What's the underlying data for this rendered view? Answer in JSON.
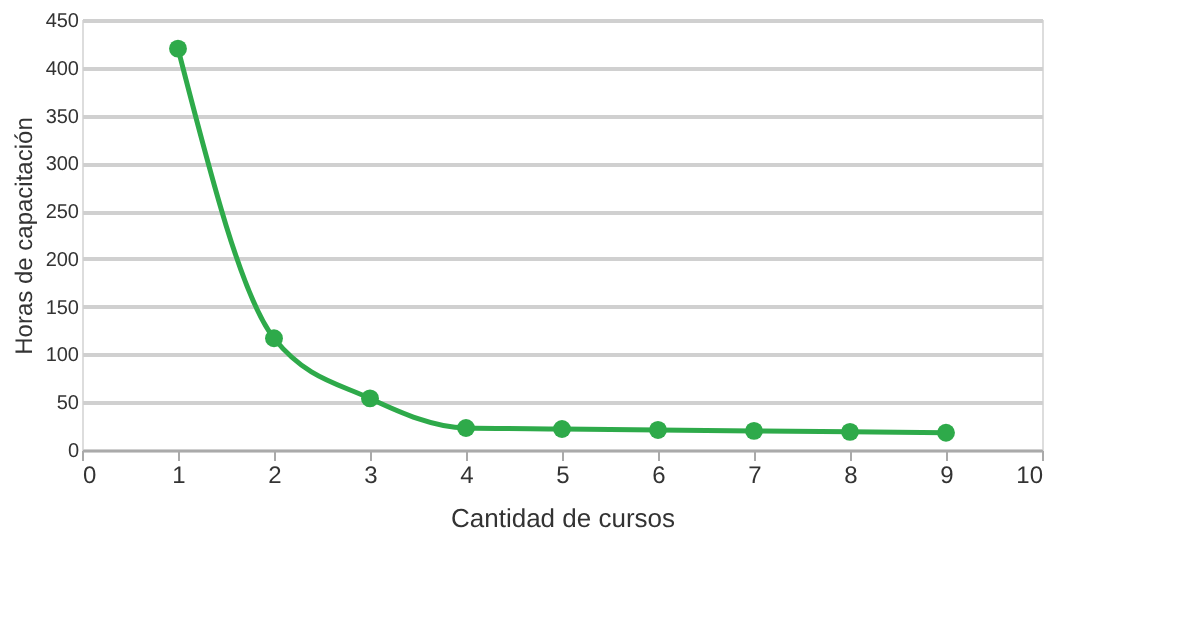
{
  "chart_data": {
    "type": "line",
    "xlabel": "Cantidad de cursos",
    "ylabel": "Horas de capacitación",
    "x": [
      1,
      2,
      3,
      4,
      5,
      6,
      7,
      8,
      9
    ],
    "series": [
      {
        "color": "#2eaa4a",
        "values": [
          420,
          117,
          54,
          23,
          22,
          21,
          20,
          19,
          18
        ]
      }
    ],
    "xlim": [
      0,
      10
    ],
    "xticks": [
      0,
      1,
      2,
      3,
      4,
      5,
      6,
      7,
      8,
      9,
      10
    ],
    "ylim": [
      0,
      450
    ],
    "yticks": [
      0,
      50,
      100,
      150,
      200,
      250,
      300,
      350,
      400,
      450
    ],
    "grid": "y",
    "marker": "circle",
    "line_style": "solid"
  }
}
